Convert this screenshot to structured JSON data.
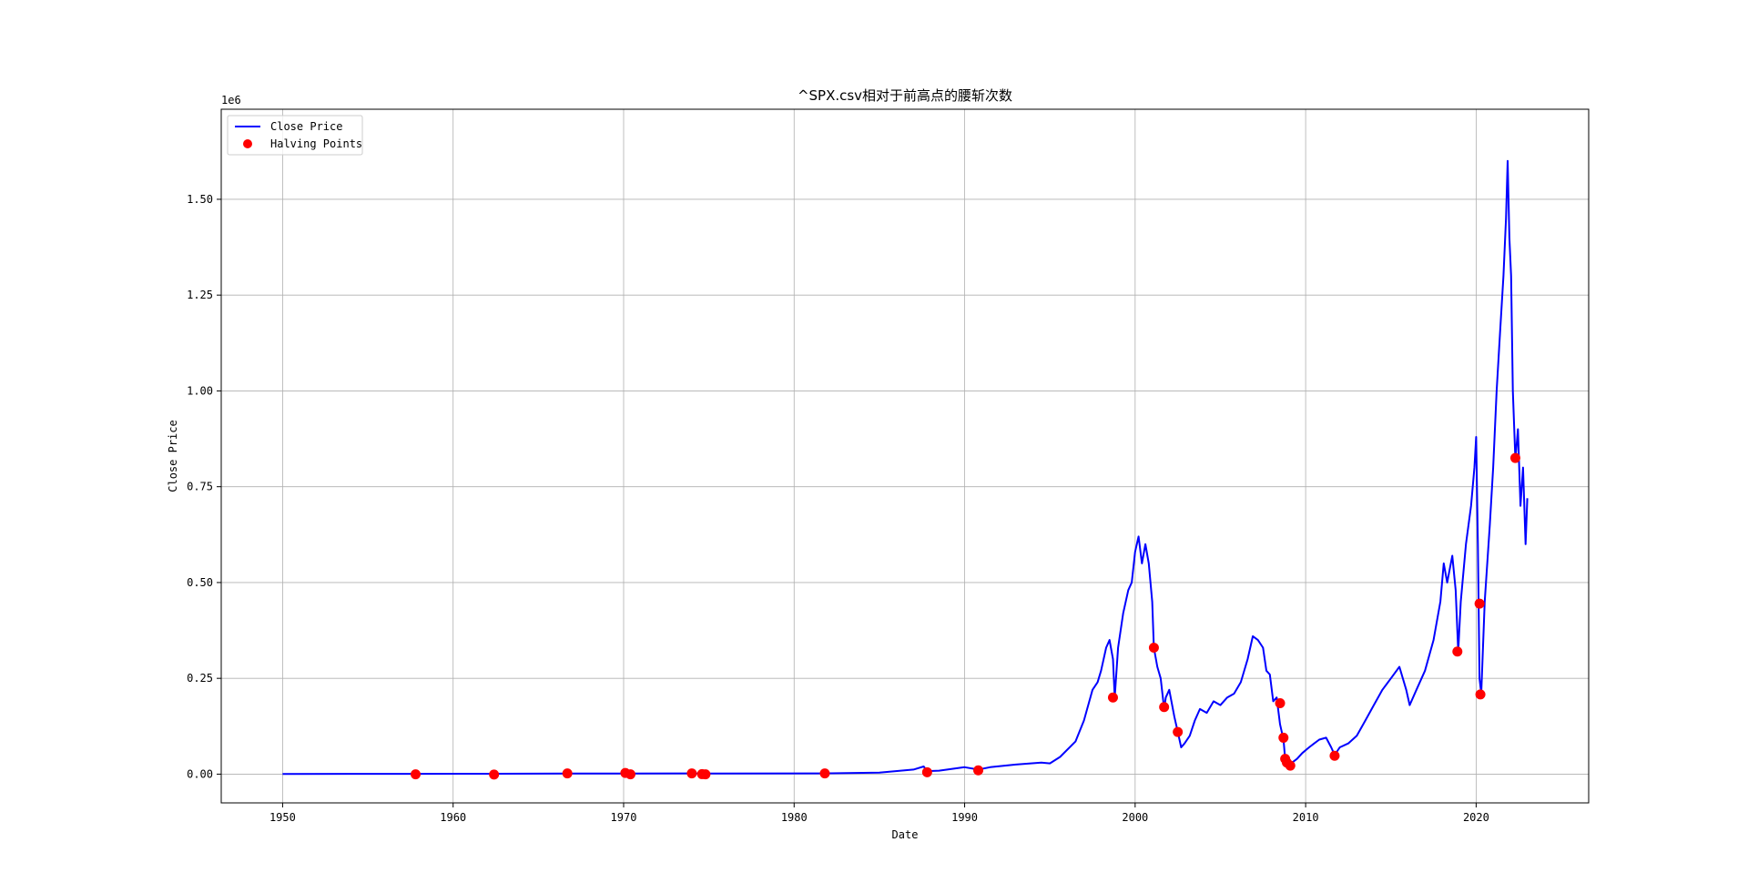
{
  "chart_data": {
    "type": "line",
    "title": "^SPX.csv相对于前高点的腰斩次数",
    "xlabel": "Date",
    "ylabel": "Close Price",
    "y_offset_text": "1e6",
    "xlim": [
      1946.4,
      2026.6
    ],
    "ylim": [
      -0.075,
      1.735
    ],
    "y_scale_factor": 1000000,
    "x_ticks": [
      1950,
      1960,
      1970,
      1980,
      1990,
      2000,
      2010,
      2020
    ],
    "y_ticks": [
      0.0,
      0.25,
      0.5,
      0.75,
      1.0,
      1.25,
      1.5
    ],
    "y_tick_labels": [
      "0.00",
      "0.25",
      "0.50",
      "0.75",
      "1.00",
      "1.25",
      "1.50"
    ],
    "grid": true,
    "legend_position": "top-left",
    "series": [
      {
        "name": "Close Price",
        "kind": "line",
        "color": "#0000ff",
        "x": [
          1950.0,
          1957.8,
          1962.4,
          1966.7,
          1970.1,
          1974.0,
          1974.8,
          1981.7,
          1985.0,
          1987.0,
          1987.6,
          1987.8,
          1988.5,
          1990.0,
          1990.8,
          1991.5,
          1993.0,
          1994.5,
          1995.0,
          1995.6,
          1996.5,
          1997.0,
          1997.5,
          1997.8,
          1998.0,
          1998.3,
          1998.5,
          1998.7,
          1998.8,
          1999.0,
          1999.3,
          1999.6,
          1999.8,
          2000.0,
          2000.2,
          2000.4,
          2000.6,
          2000.8,
          2001.0,
          2001.1,
          2001.3,
          2001.5,
          2001.7,
          2001.8,
          2002.0,
          2002.3,
          2002.5,
          2002.7,
          2002.9,
          2003.2,
          2003.5,
          2003.8,
          2004.2,
          2004.6,
          2005.0,
          2005.4,
          2005.8,
          2006.2,
          2006.6,
          2006.9,
          2007.2,
          2007.5,
          2007.7,
          2007.9,
          2008.1,
          2008.3,
          2008.5,
          2008.7,
          2008.8,
          2008.9,
          2009.0,
          2009.2,
          2009.5,
          2009.8,
          2010.2,
          2010.5,
          2010.8,
          2011.2,
          2011.5,
          2011.7,
          2012.0,
          2012.5,
          2013.0,
          2013.5,
          2014.0,
          2014.5,
          2015.0,
          2015.5,
          2015.9,
          2016.1,
          2016.5,
          2017.0,
          2017.5,
          2017.9,
          2018.1,
          2018.3,
          2018.6,
          2018.8,
          2018.95,
          2019.1,
          2019.4,
          2019.7,
          2019.9,
          2020.0,
          2020.1,
          2020.2,
          2020.3,
          2020.5,
          2020.8,
          2021.0,
          2021.2,
          2021.4,
          2021.6,
          2021.75,
          2021.85,
          2021.95,
          2022.05,
          2022.15,
          2022.3,
          2022.45,
          2022.6,
          2022.75,
          2022.9,
          2023.0
        ],
        "y": [
          0.0005,
          0.0008,
          0.001,
          0.0015,
          0.0018,
          0.002,
          0.0018,
          0.002,
          0.004,
          0.012,
          0.02,
          0.008,
          0.009,
          0.018,
          0.012,
          0.018,
          0.025,
          0.03,
          0.028,
          0.045,
          0.085,
          0.14,
          0.22,
          0.24,
          0.27,
          0.33,
          0.35,
          0.3,
          0.2,
          0.33,
          0.42,
          0.48,
          0.5,
          0.58,
          0.62,
          0.55,
          0.6,
          0.55,
          0.45,
          0.33,
          0.28,
          0.25,
          0.17,
          0.2,
          0.22,
          0.15,
          0.11,
          0.07,
          0.08,
          0.1,
          0.14,
          0.17,
          0.16,
          0.19,
          0.18,
          0.2,
          0.21,
          0.24,
          0.3,
          0.36,
          0.35,
          0.33,
          0.27,
          0.26,
          0.19,
          0.2,
          0.13,
          0.09,
          0.04,
          0.035,
          0.025,
          0.03,
          0.04,
          0.055,
          0.07,
          0.08,
          0.09,
          0.095,
          0.07,
          0.05,
          0.07,
          0.08,
          0.1,
          0.14,
          0.18,
          0.22,
          0.25,
          0.28,
          0.22,
          0.18,
          0.22,
          0.27,
          0.35,
          0.45,
          0.55,
          0.5,
          0.57,
          0.48,
          0.32,
          0.45,
          0.6,
          0.7,
          0.8,
          0.88,
          0.6,
          0.25,
          0.21,
          0.45,
          0.65,
          0.8,
          1.0,
          1.15,
          1.3,
          1.45,
          1.6,
          1.4,
          1.3,
          1.0,
          0.82,
          0.9,
          0.7,
          0.8,
          0.6,
          0.72
        ]
      },
      {
        "name": "Halving Points",
        "kind": "scatter",
        "color": "#ff0000",
        "x": [
          1957.8,
          1962.4,
          1966.7,
          1970.1,
          1970.4,
          1974.0,
          1974.6,
          1974.8,
          1981.8,
          1987.8,
          1990.8,
          1998.7,
          2001.1,
          2001.7,
          2002.5,
          2008.5,
          2008.7,
          2008.8,
          2008.9,
          2009.1,
          2011.7,
          2018.9,
          2020.2,
          2020.25,
          2022.3
        ],
        "y": [
          -0.0005,
          -0.001,
          0.002,
          0.003,
          -0.0005,
          0.002,
          0.0,
          -0.0005,
          0.002,
          0.005,
          0.01,
          0.2,
          0.33,
          0.175,
          0.11,
          0.185,
          0.095,
          0.04,
          0.03,
          0.022,
          0.048,
          0.32,
          0.445,
          0.208,
          0.825
        ]
      }
    ]
  }
}
